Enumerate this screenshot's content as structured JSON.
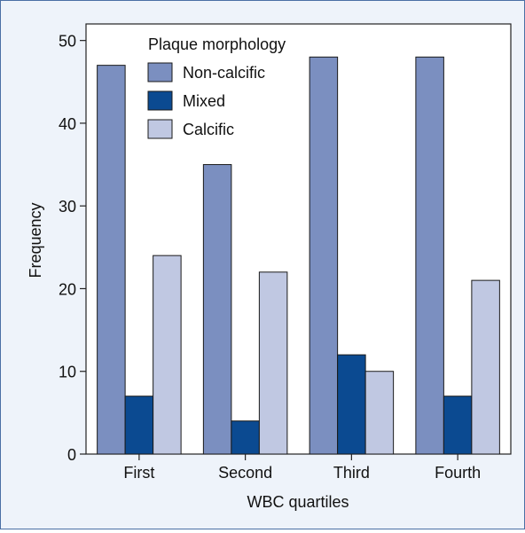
{
  "chart_data": {
    "type": "bar",
    "title": "",
    "xlabel": "WBC quartiles",
    "ylabel": "Frequency",
    "ylim": [
      0,
      52
    ],
    "yticks": [
      0,
      10,
      20,
      30,
      40,
      50
    ],
    "categories": [
      "First",
      "Second",
      "Third",
      "Fourth"
    ],
    "legend": {
      "title": "Plaque morphology",
      "placement": "top-left"
    },
    "series": [
      {
        "name": "Non-calcific",
        "color": "#7b8fc0",
        "values": [
          47,
          35,
          48,
          48
        ]
      },
      {
        "name": "Mixed",
        "color": "#0b4a91",
        "values": [
          7,
          4,
          12,
          7
        ]
      },
      {
        "name": "Calcific",
        "color": "#c0c8e2",
        "values": [
          24,
          22,
          10,
          21
        ]
      }
    ],
    "grid": false
  }
}
